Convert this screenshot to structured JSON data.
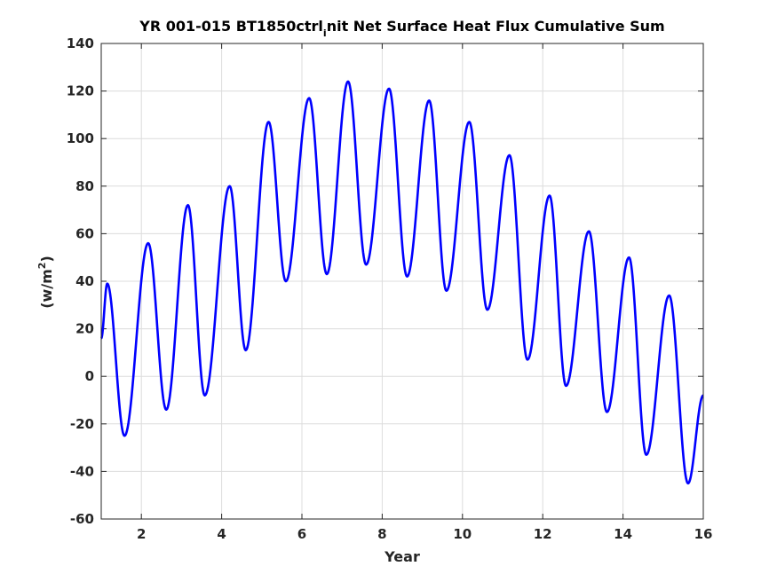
{
  "chart_data": {
    "type": "line",
    "title": "YR 001-015 BT1850ctrl_init Net Surface Heat Flux  Cumulative Sum",
    "title_parts": {
      "before": "YR 001-015 BT1850ctrl",
      "subscript": "i",
      "after": "nit Net Surface Heat Flux  Cumulative Sum"
    },
    "xlabel": "Year",
    "ylabel": "(w/m2)",
    "ylabel_parts": {
      "before": "(w/m",
      "superscript": "2",
      "after": ")"
    },
    "xlim": [
      1,
      16
    ],
    "ylim": [
      -60,
      140
    ],
    "xticks": [
      2,
      4,
      6,
      8,
      10,
      12,
      14,
      16
    ],
    "yticks": [
      -60,
      -40,
      -20,
      0,
      20,
      40,
      60,
      80,
      100,
      120,
      140
    ],
    "grid": true,
    "line_color": "#0000ff",
    "series": [
      {
        "x": [
          1.0,
          1.15,
          1.58,
          2.17,
          2.62,
          3.16,
          3.58,
          4.2,
          4.6,
          5.17,
          5.6,
          6.18,
          6.62,
          7.15,
          7.6,
          8.17,
          8.62,
          9.17,
          9.6,
          10.17,
          10.62,
          11.17,
          11.62,
          12.17,
          12.58,
          13.15,
          13.6,
          14.15,
          14.58,
          15.15,
          15.62,
          16.0
        ],
        "y": [
          16,
          39,
          -25,
          56,
          -14,
          72,
          -8,
          80,
          11,
          107,
          40,
          117,
          43,
          124,
          47,
          121,
          42,
          116,
          36,
          107,
          28,
          93,
          7,
          76,
          -4,
          61,
          -15,
          50,
          -33,
          34,
          -45,
          -8
        ]
      }
    ]
  }
}
